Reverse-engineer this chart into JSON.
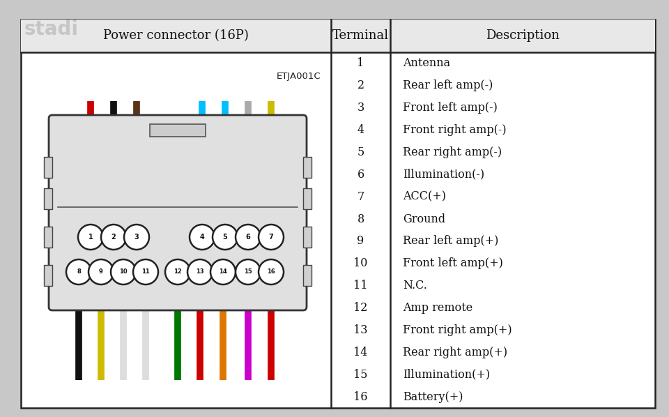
{
  "title": "Power connector (16P)",
  "subtitle": "ETJA001C",
  "terminal_header": "Terminal",
  "description_header": "Description",
  "terminals": [
    1,
    2,
    3,
    4,
    5,
    6,
    7,
    8,
    9,
    10,
    11,
    12,
    13,
    14,
    15,
    16
  ],
  "descriptions": [
    "Antenna",
    "Rear left amp(-)",
    "Front left amp(-)",
    "Front right amp(-)",
    "Rear right amp(-)",
    "Illumination(-)",
    "ACC(+)",
    "Ground",
    "Rear left amp(+)",
    "Front left amp(+)",
    "N.C.",
    "Amp remote",
    "Front right amp(+)",
    "Rear right amp(+)",
    "Illumination(+)",
    "Battery(+)"
  ],
  "top_wires": [
    {
      "pin": 1,
      "color": "#cc0000"
    },
    {
      "pin": 2,
      "color": "#111111"
    },
    {
      "pin": 3,
      "color": "#5c3317"
    },
    {
      "pin": 4,
      "color": "#00bfff"
    },
    {
      "pin": 5,
      "color": "#00bfff"
    },
    {
      "pin": 6,
      "color": "#aaaaaa"
    },
    {
      "pin": 7,
      "color": "#ccbb00"
    }
  ],
  "bottom_wires": [
    {
      "pin": 8,
      "color": "#111111"
    },
    {
      "pin": 9,
      "color": "#ccbb00"
    },
    {
      "pin": 10,
      "color": "#dddddd"
    },
    {
      "pin": 11,
      "color": "#dddddd"
    },
    {
      "pin": 12,
      "color": "#007700"
    },
    {
      "pin": 13,
      "color": "#cc0000"
    },
    {
      "pin": 14,
      "color": "#dd7700"
    },
    {
      "pin": 15,
      "color": "#cc00cc"
    },
    {
      "pin": 16,
      "color": "#cc0000"
    }
  ],
  "bg_color": "#c8c8c8",
  "table_bg": "#ffffff",
  "border_color": "#222222",
  "font_size_header": 13,
  "font_size_body": 11.5,
  "watermark": "stadi"
}
